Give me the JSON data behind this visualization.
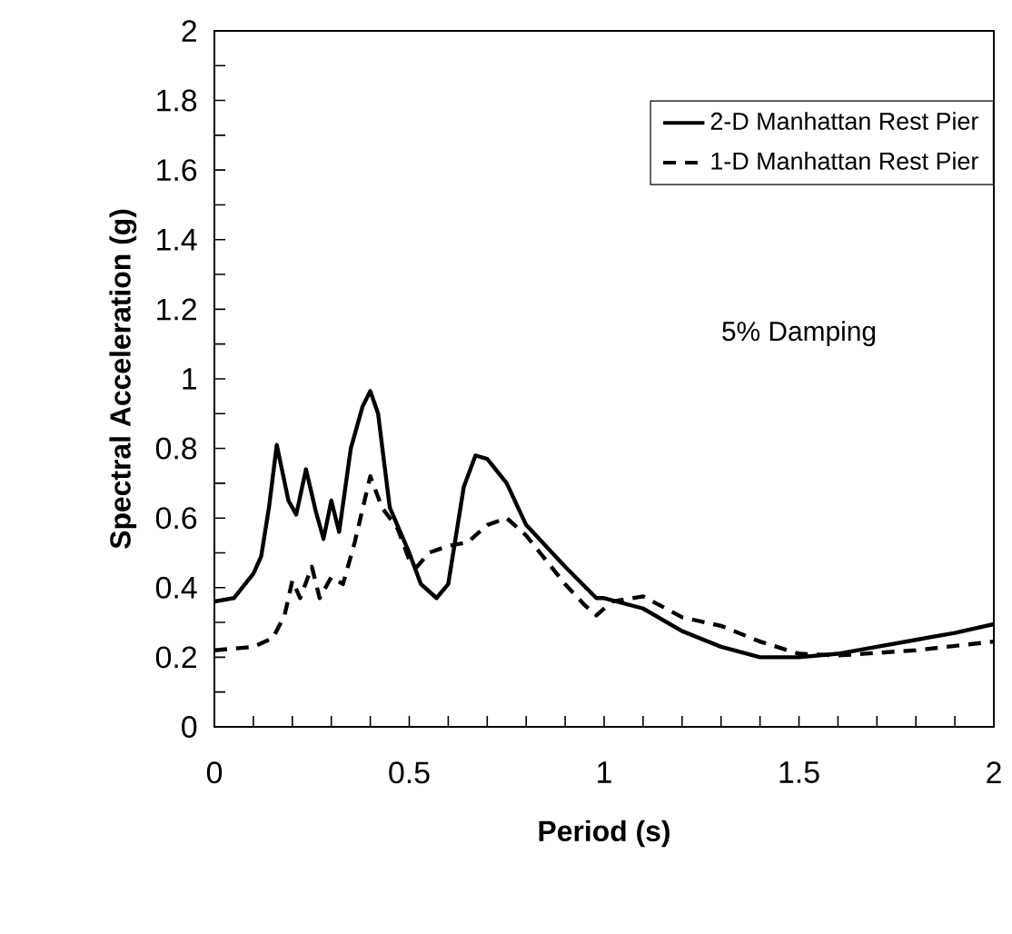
{
  "chart_data": {
    "type": "line",
    "xlabel": "Period (s)",
    "ylabel": "Spectral Acceleration (g)",
    "annotations": [
      "5% Damping"
    ],
    "xlim": [
      0,
      2
    ],
    "ylim": [
      0,
      2
    ],
    "xticks": [
      0,
      0.5,
      1,
      1.5,
      2
    ],
    "yticks": [
      0,
      0.2,
      0.4,
      0.6,
      0.8,
      1,
      1.2,
      1.4,
      1.6,
      1.8,
      2
    ],
    "grid": false,
    "legend": "top right",
    "marker": "none",
    "series": [
      {
        "name": "2-D Manhattan Rest Pier",
        "color": "#000000",
        "line_style": "solid",
        "x": [
          0,
          0.05,
          0.1,
          0.12,
          0.14,
          0.16,
          0.19,
          0.21,
          0.235,
          0.26,
          0.28,
          0.3,
          0.32,
          0.35,
          0.38,
          0.4,
          0.42,
          0.45,
          0.5,
          0.53,
          0.57,
          0.6,
          0.64,
          0.67,
          0.7,
          0.75,
          0.8,
          0.9,
          0.98,
          1.0,
          1.1,
          1.2,
          1.3,
          1.4,
          1.5,
          1.6,
          1.7,
          1.8,
          1.9,
          2.0
        ],
        "values": [
          0.36,
          0.37,
          0.44,
          0.49,
          0.63,
          0.81,
          0.65,
          0.61,
          0.74,
          0.62,
          0.54,
          0.65,
          0.56,
          0.8,
          0.92,
          0.965,
          0.9,
          0.63,
          0.5,
          0.41,
          0.37,
          0.41,
          0.69,
          0.78,
          0.77,
          0.7,
          0.58,
          0.46,
          0.37,
          0.37,
          0.34,
          0.275,
          0.23,
          0.2,
          0.2,
          0.21,
          0.23,
          0.25,
          0.27,
          0.295
        ]
      },
      {
        "name": "1-D Manhattan Rest Pier",
        "color": "#000000",
        "line_style": "dashed",
        "x": [
          0,
          0.1,
          0.15,
          0.18,
          0.2,
          0.22,
          0.25,
          0.27,
          0.3,
          0.33,
          0.36,
          0.4,
          0.43,
          0.47,
          0.5,
          0.52,
          0.55,
          0.6,
          0.65,
          0.7,
          0.75,
          0.8,
          0.9,
          0.95,
          0.98,
          1.02,
          1.1,
          1.2,
          1.3,
          1.4,
          1.5,
          1.6,
          1.8,
          2.0
        ],
        "values": [
          0.22,
          0.23,
          0.255,
          0.32,
          0.42,
          0.37,
          0.46,
          0.37,
          0.43,
          0.41,
          0.53,
          0.72,
          0.63,
          0.57,
          0.48,
          0.46,
          0.5,
          0.52,
          0.53,
          0.58,
          0.6,
          0.55,
          0.41,
          0.35,
          0.32,
          0.36,
          0.375,
          0.315,
          0.29,
          0.245,
          0.21,
          0.205,
          0.22,
          0.245
        ]
      }
    ]
  }
}
